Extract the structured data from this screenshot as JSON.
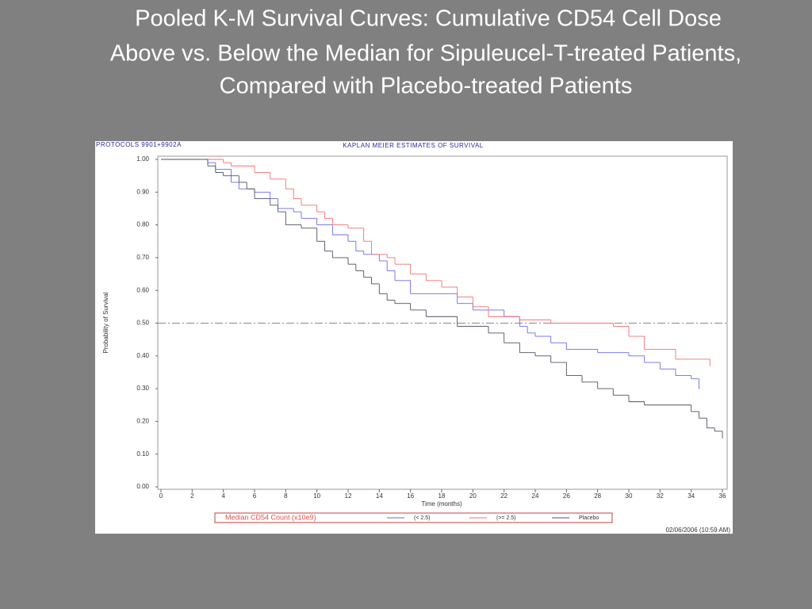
{
  "chart_data": {
    "type": "step",
    "title": [
      "Pooled K-M Survival Curves: Cumulative CD54 Cell Dose",
      "Above vs. Below the Median for Sipuleucel-T-treated Patients,",
      "Compared with Placebo-treated Patients"
    ],
    "header": "PROTOCOLS 9901+9902A",
    "subtitle": "KAPLAN MEIER ESTIMATES OF SURVIVAL",
    "xlabel": "Time (months)",
    "ylabel": "Probability of Survival",
    "footer": "02/06/2006 (10:59 AM)",
    "legend_title": "Median CD54 Count (x10e9)",
    "reference_line": 0.5,
    "xlim": [
      0,
      36
    ],
    "ylim": [
      0,
      1
    ],
    "xticks": [
      0,
      2,
      4,
      6,
      8,
      10,
      12,
      14,
      16,
      18,
      20,
      22,
      24,
      26,
      28,
      30,
      32,
      34,
      36
    ],
    "yticks": [
      {
        "value": 0,
        "label": "0.00"
      },
      {
        "value": 0.1,
        "label": "0.10"
      },
      {
        "value": 0.2,
        "label": "0.20"
      },
      {
        "value": 0.3,
        "label": "0.30"
      },
      {
        "value": 0.4,
        "label": "0.40"
      },
      {
        "value": 0.5,
        "label": "0.50"
      },
      {
        "value": 0.6,
        "label": "0.60"
      },
      {
        "value": 0.7,
        "label": "0.70"
      },
      {
        "value": 0.8,
        "label": "0.80"
      },
      {
        "value": 0.9,
        "label": "0.90"
      },
      {
        "value": 1,
        "label": "1.00"
      }
    ],
    "series": [
      {
        "name": "(< 2.5)",
        "color": "#6a6ae8",
        "x": [
          0,
          3,
          3.5,
          4.5,
          5,
          6,
          7,
          7.5,
          8.5,
          9,
          10,
          11,
          12,
          12.5,
          13,
          14,
          14.5,
          15,
          16,
          19,
          20,
          22,
          23,
          23.5,
          24,
          25,
          26,
          28,
          30,
          31,
          32,
          33,
          34,
          34.5
        ],
        "values": [
          1,
          0.99,
          0.97,
          0.93,
          0.91,
          0.9,
          0.88,
          0.85,
          0.84,
          0.82,
          0.8,
          0.77,
          0.75,
          0.72,
          0.71,
          0.69,
          0.66,
          0.63,
          0.59,
          0.56,
          0.54,
          0.52,
          0.49,
          0.47,
          0.46,
          0.44,
          0.42,
          0.41,
          0.4,
          0.38,
          0.36,
          0.34,
          0.33,
          0.3
        ]
      },
      {
        "name": "(>= 2.5)",
        "color": "#f07070",
        "x": [
          0,
          4,
          4.5,
          6,
          7,
          8,
          8.5,
          9,
          10,
          10.5,
          11,
          12,
          13,
          13.5,
          14.5,
          15,
          16,
          17,
          18,
          19,
          20,
          21,
          23,
          25,
          29,
          30,
          31,
          33,
          35.2
        ],
        "values": [
          1,
          0.99,
          0.98,
          0.96,
          0.94,
          0.91,
          0.88,
          0.86,
          0.84,
          0.82,
          0.8,
          0.79,
          0.75,
          0.71,
          0.7,
          0.68,
          0.65,
          0.63,
          0.61,
          0.58,
          0.55,
          0.52,
          0.51,
          0.5,
          0.49,
          0.46,
          0.42,
          0.39,
          0.37
        ]
      },
      {
        "name": "Placebo",
        "color": "#505060",
        "x": [
          0,
          3,
          3.5,
          4,
          5,
          5.5,
          6,
          7,
          7.5,
          8,
          9,
          10,
          10.5,
          11,
          12,
          12.5,
          13,
          13.5,
          14,
          14.5,
          15,
          16,
          17,
          19,
          21,
          22,
          23,
          24,
          25,
          26,
          27,
          28,
          29,
          30,
          31,
          34,
          34.5,
          35,
          35.5,
          36
        ],
        "values": [
          1,
          0.98,
          0.96,
          0.95,
          0.93,
          0.91,
          0.88,
          0.86,
          0.84,
          0.8,
          0.79,
          0.75,
          0.72,
          0.7,
          0.68,
          0.66,
          0.64,
          0.62,
          0.59,
          0.57,
          0.56,
          0.54,
          0.52,
          0.49,
          0.47,
          0.44,
          0.41,
          0.4,
          0.38,
          0.34,
          0.32,
          0.3,
          0.28,
          0.26,
          0.25,
          0.23,
          0.21,
          0.18,
          0.17,
          0.15
        ]
      }
    ]
  }
}
